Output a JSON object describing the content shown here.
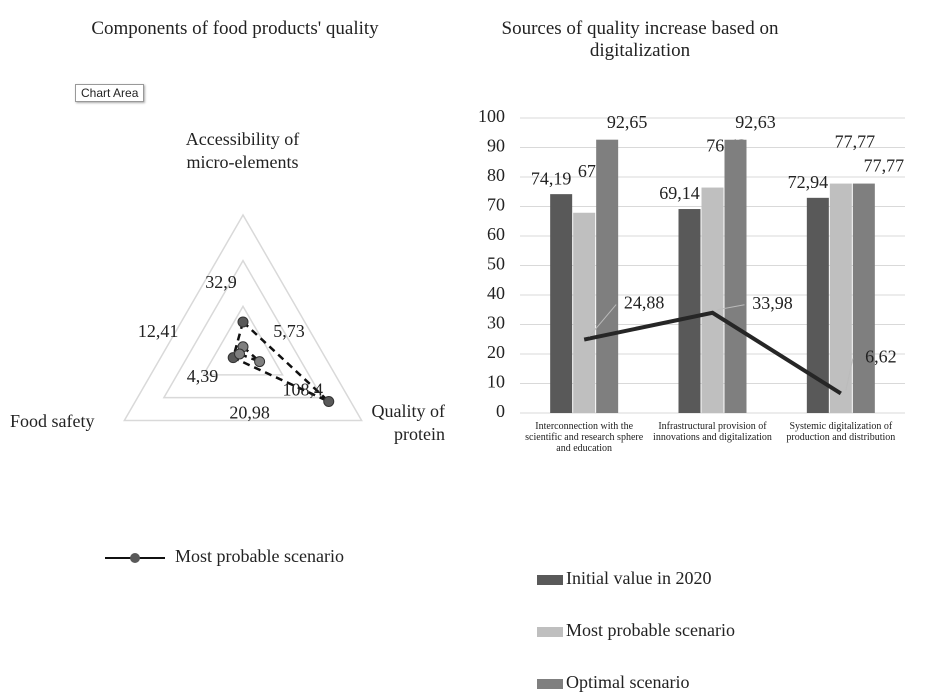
{
  "tooltip": "Chart Area",
  "chart_data": [
    {
      "type": "radar",
      "title": "Components of food products' quality",
      "categories": [
        "Accessibility of micro-elements",
        "Quality of protein",
        "Food safety"
      ],
      "rlim": [
        0,
        150
      ],
      "rticks": [
        50,
        100,
        150
      ],
      "series": [
        {
          "name": "Most probable scenario",
          "color": "#595959",
          "line_color": "#111111",
          "values": [
            32.9,
            108.4,
            12.41
          ],
          "value_labels": [
            "32,9",
            "108,4",
            "12,41"
          ]
        },
        {
          "color": "#7f7f7f",
          "line_color": "#111111",
          "values": [
            5.73,
            20.98,
            4.39
          ],
          "value_labels": [
            "5,73",
            "20,98",
            "4,39"
          ]
        }
      ]
    },
    {
      "type": "bar",
      "title": "Sources of quality increase based on digitalization",
      "categories": [
        "Interconnection with the scientific and research sphere and education",
        "Infrastructural provision of innovations and digitalization",
        "Systemic digitalization of production and distribution"
      ],
      "ylim": [
        0,
        100
      ],
      "yticks": [
        0,
        10,
        20,
        30,
        40,
        50,
        60,
        70,
        80,
        90,
        100
      ],
      "grid": true,
      "series": [
        {
          "name": "Initial value in 2020",
          "color": "#595959",
          "values": [
            74.19,
            69.14,
            72.94
          ],
          "value_labels": [
            "74,19",
            "69,14",
            "72,94"
          ]
        },
        {
          "name": "Most probable scenario",
          "color": "#bfbfbf",
          "values": [
            67.88,
            76.42,
            77.77
          ],
          "value_labels": [
            "67,88",
            "76,42",
            "77,77"
          ]
        },
        {
          "name": "Optimal scenario",
          "color": "#7f7f7f",
          "values": [
            92.65,
            92.63,
            77.77
          ],
          "value_labels": [
            "92,65",
            "92,63",
            "77,77"
          ]
        },
        {
          "type": "line",
          "color": "#262626",
          "values": [
            24.88,
            33.98,
            6.62
          ],
          "value_labels": [
            "24,88",
            "33,98",
            "6,62"
          ]
        }
      ]
    }
  ]
}
